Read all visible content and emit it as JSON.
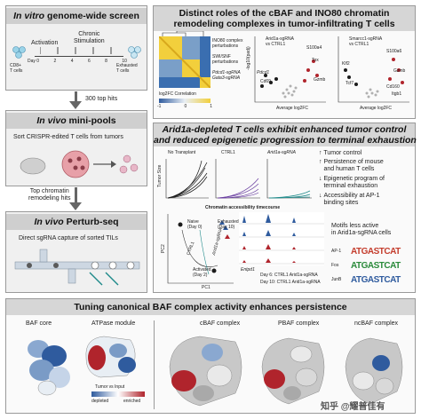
{
  "screen": {
    "title_prefix": "In vitro",
    "title_suffix": " genome-wide screen",
    "activation": "Activation",
    "chronic_stim": "Chronic\nStimulation",
    "days": [
      "Day 0",
      "2",
      "4",
      "6",
      "8",
      "10"
    ],
    "cd8_label": "CD8+\nT cells",
    "exhausted_label": "Exhausted\nT cells",
    "top_hits": "300 top hits"
  },
  "minipools": {
    "title_prefix": "In vivo",
    "title_suffix": " mini-pools",
    "sort_text": "Sort CRISPR-edited T cells from tumors",
    "top_hits": "Top chromatin\nremodeling hits"
  },
  "perturbseq": {
    "title_prefix": "In vivo",
    "title_suffix": " Perturb-seq",
    "capture_text": "Direct sgRNA capture of sorted TILs"
  },
  "distinct": {
    "title": "Distinct roles of the cBAF and INO80 chromatin\nremodeling complexes in tumor-infiltrating T cells",
    "heatmap_labels": [
      "INO80 complex\nperturbations",
      "SWI/SNF\nperturbations",
      "Pdcd1-sgRNA\nGata3-sgRNA"
    ],
    "corr_label": "log2FC Correlation",
    "corr_ticks": [
      "-1",
      "0",
      "1"
    ],
    "volcano1": "Arid1a-sgRNA\nvs CTRL1",
    "volcano2": "Smarcc1-sgRNA\nvs CTRL1",
    "genes1": [
      "Tox",
      "Pdcd1",
      "Gzmb",
      "Cd69",
      "S100a4"
    ],
    "genes2": [
      "S100a6",
      "Gzmb",
      "Klf2",
      "Tcf7",
      "Cd160",
      "Itgb1"
    ],
    "xaxis": "Average log2FC",
    "yaxis": "-log10(padj)"
  },
  "arid": {
    "title": "Arid1a-depleted T cells exhibit enhanced tumor control\nand reduced epigenetic progression to terminal exhaustion",
    "growth_titles": [
      "No Transplant",
      "CTRL1",
      "Arid1a-sgRNA"
    ],
    "tumor_size": "Tumor Size",
    "bullets": [
      "Tumor control",
      "Persistence of mouse\nand human T cells",
      "Epigenetic program of\nterminal exhaustion",
      "Accessibility at AP-1\nbinding sites"
    ],
    "atac_title": "Chromatin accessibility timecourse",
    "pca_labels": {
      "naive": "Naive\n(Day 0)",
      "exhausted": "Exhausted\n(Day 10)",
      "activated": "Activated\n(Day 2)",
      "ctrl": "CTRL1",
      "arid": "Arid1a-sgRNA",
      "pc1": "PC1",
      "pc2": "PC2"
    },
    "gene_locus": "Entpd1",
    "track_legend": [
      "Day 6: CTRL1  Arid1a-sgRNA",
      "Day 10: CTRL1  Arid1a-sgRNA"
    ],
    "motif_title": "Motifs less active\nin Arid1a-sgRNA cells",
    "motifs": [
      {
        "name": "AP-1",
        "seq": "ATGASTCAT"
      },
      {
        "name": "Fos",
        "seq": "ATGASTCAT"
      },
      {
        "name": "JunB",
        "seq": "ATGASTCAT"
      }
    ]
  },
  "baf": {
    "title": "Tuning canonical BAF complex activity enhances persistence",
    "panels": [
      "BAF core",
      "ATPase module",
      "cBAF complex",
      "PBAF complex",
      "ncBAF complex"
    ],
    "legend_title": "Tumor vs Input",
    "legend_low": "depleted",
    "legend_high": "enriched",
    "watermark": "知乎 @耀普佳有"
  },
  "colors": {
    "enriched": "#b0242c",
    "depleted": "#2f5b9e",
    "panel_bg": "#f0f0f0",
    "header_bg": "#d6d6d6",
    "ctrl_purple": "#6a3fa0",
    "arid_teal": "#1f8a8a"
  }
}
